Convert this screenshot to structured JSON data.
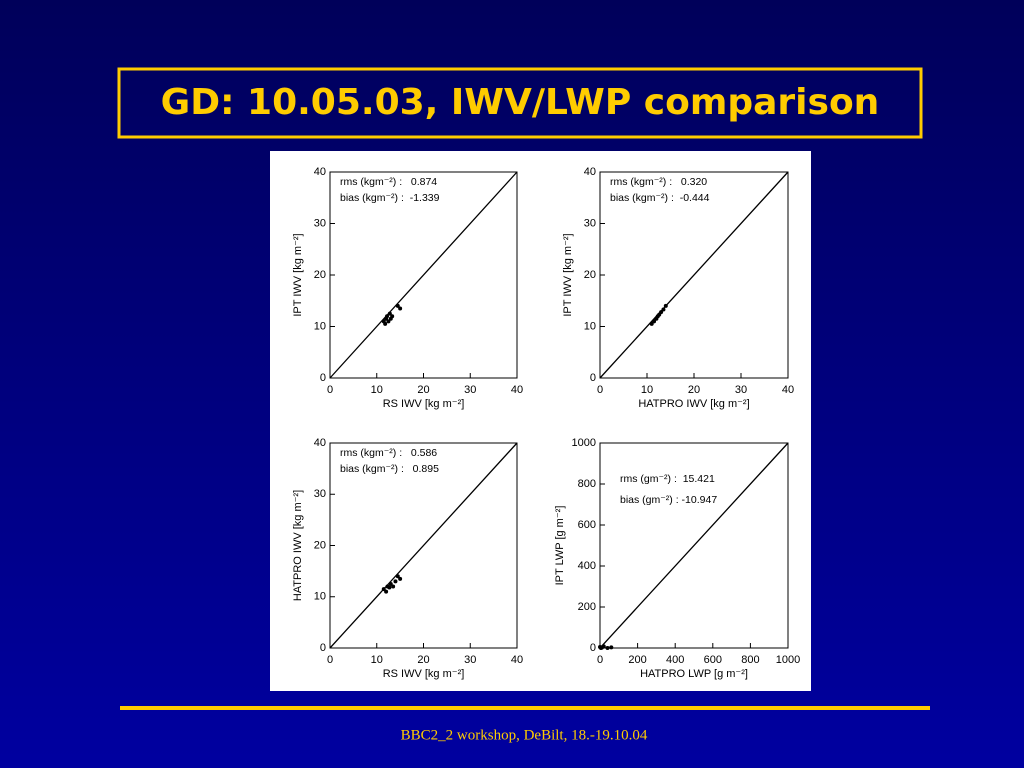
{
  "title": "GD: 10.05.03, IWV/LWP comparison",
  "footer": "BBC2_2 workshop, DeBilt, 18.-19.10.04",
  "chart_data": [
    {
      "type": "scatter",
      "xlabel": "RS IWV [kg m⁻²]",
      "ylabel": "IPT IWV [kg m⁻²]",
      "annotations": [
        "rms (kgm⁻²) :   0.874",
        "bias (kgm⁻²) :  -1.339"
      ],
      "xlim": [
        0,
        40
      ],
      "ylim": [
        0,
        40
      ],
      "xticks": [
        0,
        10,
        20,
        30,
        40
      ],
      "yticks": [
        0,
        10,
        20,
        30,
        40
      ],
      "color": "#000000",
      "x": [
        11.5,
        11.8,
        12.0,
        12.2,
        12.5,
        12.8,
        13.0,
        13.3,
        14.5,
        15.0
      ],
      "values": [
        11.0,
        10.5,
        11.5,
        12.0,
        11.0,
        12.5,
        11.5,
        12.0,
        14.0,
        13.5
      ]
    },
    {
      "type": "scatter",
      "xlabel": "HATPRO IWV [kg m⁻²]",
      "ylabel": "IPT IWV [kg m⁻²]",
      "annotations": [
        "rms (kgm⁻²) :   0.320",
        "bias (kgm⁻²) :  -0.444"
      ],
      "xlim": [
        0,
        40
      ],
      "ylim": [
        0,
        40
      ],
      "xticks": [
        0,
        10,
        20,
        30,
        40
      ],
      "yticks": [
        0,
        10,
        20,
        30,
        40
      ],
      "color": "#000000",
      "x": [
        11.0,
        11.5,
        12.0,
        12.3,
        12.6,
        13.0,
        13.5,
        14.0
      ],
      "values": [
        10.5,
        11.0,
        11.5,
        12.0,
        12.3,
        12.8,
        13.3,
        14.0
      ]
    },
    {
      "type": "scatter",
      "xlabel": "RS IWV [kg m⁻²]",
      "ylabel": "HATPRO IWV [kg m⁻²]",
      "annotations": [
        "rms (kgm⁻²) :   0.586",
        "bias (kgm⁻²) :   0.895"
      ],
      "xlim": [
        0,
        40
      ],
      "ylim": [
        0,
        40
      ],
      "xticks": [
        0,
        10,
        20,
        30,
        40
      ],
      "yticks": [
        0,
        10,
        20,
        30,
        40
      ],
      "color": "#000000",
      "x": [
        11.5,
        12.0,
        12.3,
        12.7,
        13.0,
        13.5,
        14.0,
        14.5,
        15.0
      ],
      "values": [
        11.5,
        11.0,
        12.0,
        11.8,
        12.5,
        12.0,
        13.0,
        14.0,
        13.5
      ]
    },
    {
      "type": "scatter",
      "xlabel": "HATPRO LWP [g m⁻²]",
      "ylabel": "IPT LWP [g m⁻²]",
      "annotations": [
        "rms (gm⁻²) :  15.421",
        "bias (gm⁻²) : -10.947"
      ],
      "xlim": [
        0,
        1000
      ],
      "ylim": [
        0,
        1000
      ],
      "xticks": [
        0,
        200,
        400,
        600,
        800,
        1000
      ],
      "yticks": [
        0,
        200,
        400,
        600,
        800,
        1000
      ],
      "color": "#000000",
      "x": [
        0,
        5,
        10,
        20,
        40,
        60
      ],
      "values": [
        5,
        0,
        2,
        8,
        0,
        3
      ]
    }
  ]
}
